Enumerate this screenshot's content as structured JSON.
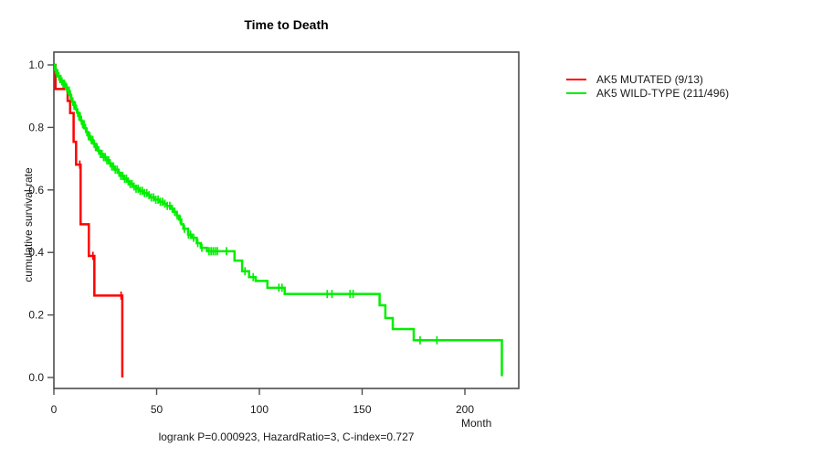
{
  "chart_data": {
    "type": "line",
    "subtype": "kaplan-meier-step-curves",
    "title": "Time to Death",
    "xlabel": "Month",
    "ylabel": "cumulative survival rate",
    "annotation": "logrank P=0.000923, HazardRatio=3, C-index=0.727",
    "x_ticks": [
      0,
      50,
      100,
      150,
      200
    ],
    "y_ticks": [
      0.0,
      0.2,
      0.4,
      0.6,
      0.8,
      1.0
    ],
    "xlim": [
      0,
      226
    ],
    "ylim": [
      0.0,
      1.0
    ],
    "grid": false,
    "legend_position": "right-outside",
    "series": [
      {
        "name": "AK5 MUTATED (9/13)",
        "color": "#ff0000",
        "steps": [
          [
            0,
            1.0
          ],
          [
            0.8,
            0.923
          ],
          [
            6.7,
            0.885
          ],
          [
            7.9,
            0.846
          ],
          [
            9.6,
            0.754
          ],
          [
            10.8,
            0.681
          ],
          [
            13.0,
            0.49
          ],
          [
            17.0,
            0.389
          ],
          [
            19.7,
            0.262
          ],
          [
            33.3,
            0.0
          ]
        ],
        "censor_months": [
          12.6,
          19.0,
          32.7
        ]
      },
      {
        "name": "AK5 WILD-TYPE (211/496)",
        "color": "#00ee00",
        "steps": [
          [
            0,
            1.0
          ],
          [
            0.6,
            0.985
          ],
          [
            1.2,
            0.973
          ],
          [
            2,
            0.963
          ],
          [
            2.8,
            0.955
          ],
          [
            3.6,
            0.947
          ],
          [
            4.4,
            0.94
          ],
          [
            5.2,
            0.933
          ],
          [
            6,
            0.927
          ],
          [
            6.8,
            0.918
          ],
          [
            7.5,
            0.905
          ],
          [
            8.2,
            0.893
          ],
          [
            9,
            0.882
          ],
          [
            9.8,
            0.87
          ],
          [
            10.6,
            0.858
          ],
          [
            11.4,
            0.847
          ],
          [
            12.2,
            0.835
          ],
          [
            13,
            0.822
          ],
          [
            13.8,
            0.81
          ],
          [
            14.8,
            0.797
          ],
          [
            15.8,
            0.785
          ],
          [
            16.8,
            0.772
          ],
          [
            17.8,
            0.76
          ],
          [
            19,
            0.748
          ],
          [
            20.2,
            0.737
          ],
          [
            21.4,
            0.726
          ],
          [
            22.6,
            0.715
          ],
          [
            24,
            0.705
          ],
          [
            25.4,
            0.695
          ],
          [
            26.8,
            0.685
          ],
          [
            28.2,
            0.675
          ],
          [
            29.6,
            0.665
          ],
          [
            31,
            0.655
          ],
          [
            32.5,
            0.645
          ],
          [
            34,
            0.636
          ],
          [
            35.5,
            0.627
          ],
          [
            37,
            0.619
          ],
          [
            38.5,
            0.611
          ],
          [
            40,
            0.604
          ],
          [
            41.8,
            0.597
          ],
          [
            43.6,
            0.59
          ],
          [
            45.4,
            0.583
          ],
          [
            47.2,
            0.576
          ],
          [
            49,
            0.569
          ],
          [
            51,
            0.562
          ],
          [
            53,
            0.556
          ],
          [
            55,
            0.549
          ],
          [
            57,
            0.54
          ],
          [
            58.5,
            0.53
          ],
          [
            59.8,
            0.518
          ],
          [
            61,
            0.505
          ],
          [
            62,
            0.49
          ],
          [
            63,
            0.476
          ],
          [
            65.3,
            0.457
          ],
          [
            67,
            0.447
          ],
          [
            69.5,
            0.43
          ],
          [
            71.5,
            0.415
          ],
          [
            74.5,
            0.404
          ],
          [
            87.9,
            0.374
          ],
          [
            91.6,
            0.34
          ],
          [
            95,
            0.321
          ],
          [
            98.2,
            0.309
          ],
          [
            103.9,
            0.287
          ],
          [
            112.3,
            0.267
          ],
          [
            158.5,
            0.231
          ],
          [
            161.3,
            0.19
          ],
          [
            164.9,
            0.155
          ],
          [
            175.1,
            0.119
          ],
          [
            218,
            0.004
          ]
        ],
        "censor_months": [
          0.9,
          1.4,
          1.9,
          2.4,
          2.9,
          3.4,
          3.9,
          4.5,
          5.1,
          5.7,
          6.3,
          6.9,
          7.4,
          8.0,
          8.6,
          9.2,
          9.8,
          10.4,
          11.0,
          11.6,
          12.2,
          12.8,
          13.4,
          14.0,
          14.7,
          15.4,
          16.1,
          16.8,
          17.5,
          18.2,
          18.9,
          19.6,
          20.3,
          21.0,
          21.8,
          22.6,
          23.4,
          24.2,
          25.0,
          25.8,
          26.6,
          27.4,
          28.2,
          29.0,
          29.9,
          30.8,
          31.7,
          32.6,
          33.5,
          34.4,
          35.3,
          36.2,
          37.1,
          38.0,
          39.0,
          40.0,
          41.0,
          42.0,
          43.0,
          44.1,
          45.2,
          46.3,
          47.4,
          48.5,
          49.6,
          50.7,
          51.8,
          52.9,
          54.0,
          55.2,
          56.4,
          57.6,
          58.8,
          60.0,
          61.5,
          63.5,
          65.5,
          66.5,
          68.0,
          70.0,
          72.0,
          75.5,
          76.5,
          77.5,
          78.5,
          79.5,
          84.0,
          93.0,
          97.0,
          109.5,
          111.0,
          133.0,
          135.3,
          144.1,
          145.6,
          178.2,
          186.4
        ]
      }
    ]
  },
  "colors": {
    "mutated": "#ff0000",
    "wildtype": "#00ee00",
    "axis": "#4d4d4d",
    "text": "#1a1a1a"
  }
}
